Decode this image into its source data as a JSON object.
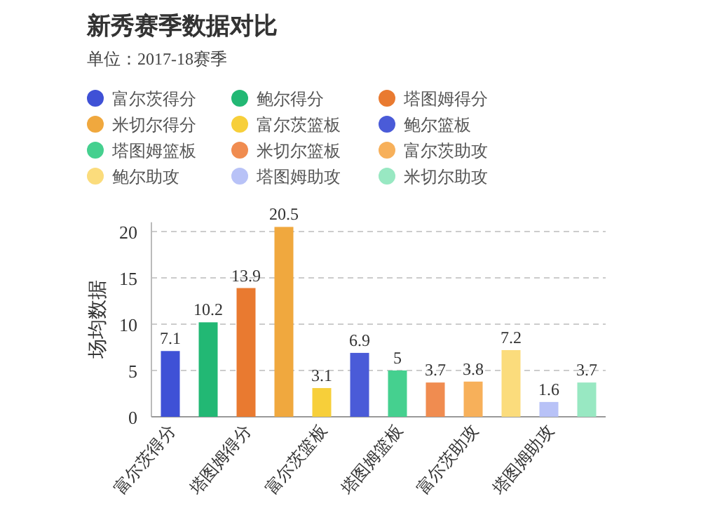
{
  "chart_data": {
    "type": "bar",
    "title": "新秀赛季数据对比",
    "subtitle": "单位：2017-18赛季",
    "ylabel": "场均数据",
    "categories": [
      "富尔茨得分",
      null,
      "塔图姆得分",
      null,
      "富尔茨篮板",
      null,
      "塔图姆篮板",
      null,
      "富尔茨助攻",
      null,
      "塔图姆助攻",
      null
    ],
    "series": [
      {
        "name": "富尔茨得分",
        "color": "#3f51d6",
        "values": [
          7.1,
          null,
          null,
          null,
          null,
          null,
          null,
          null,
          null,
          null,
          null,
          null
        ]
      },
      {
        "name": "鲍尔得分",
        "color": "#22b874",
        "values": [
          null,
          10.2,
          null,
          null,
          null,
          null,
          null,
          null,
          null,
          null,
          null,
          null
        ]
      },
      {
        "name": "塔图姆得分",
        "color": "#e97a30",
        "values": [
          null,
          null,
          13.9,
          null,
          null,
          null,
          null,
          null,
          null,
          null,
          null,
          null
        ]
      },
      {
        "name": "米切尔得分",
        "color": "#f0a83e",
        "values": [
          null,
          null,
          null,
          20.5,
          null,
          null,
          null,
          null,
          null,
          null,
          null,
          null
        ]
      },
      {
        "name": "富尔茨篮板",
        "color": "#f7cf3a",
        "values": [
          null,
          null,
          null,
          null,
          3.1,
          null,
          null,
          null,
          null,
          null,
          null,
          null
        ]
      },
      {
        "name": "鲍尔篮板",
        "color": "#4a5bd8",
        "values": [
          null,
          null,
          null,
          null,
          null,
          6.9,
          null,
          null,
          null,
          null,
          null,
          null
        ]
      },
      {
        "name": "塔图姆篮板",
        "color": "#45d08f",
        "values": [
          null,
          null,
          null,
          null,
          null,
          null,
          5,
          null,
          null,
          null,
          null,
          null
        ]
      },
      {
        "name": "米切尔篮板",
        "color": "#f08c50",
        "values": [
          null,
          null,
          null,
          null,
          null,
          null,
          null,
          3.7,
          null,
          null,
          null,
          null
        ]
      },
      {
        "name": "富尔茨助攻",
        "color": "#f7b05a",
        "values": [
          null,
          null,
          null,
          null,
          null,
          null,
          null,
          null,
          3.8,
          null,
          null,
          null
        ]
      },
      {
        "name": "鲍尔助攻",
        "color": "#fbdc7c",
        "values": [
          null,
          null,
          null,
          null,
          null,
          null,
          null,
          null,
          null,
          7.2,
          null,
          null
        ]
      },
      {
        "name": "塔图姆助攻",
        "color": "#b8c2f7",
        "values": [
          null,
          null,
          null,
          null,
          null,
          null,
          null,
          null,
          null,
          null,
          1.6,
          null
        ]
      },
      {
        "name": "米切尔助攻",
        "color": "#98e8c2",
        "values": [
          null,
          null,
          null,
          null,
          null,
          null,
          null,
          null,
          null,
          null,
          null,
          3.7
        ]
      }
    ],
    "ylim": [
      0,
      21
    ],
    "yticks": [
      0,
      5,
      10,
      15,
      20
    ],
    "grid": "y",
    "legend": "top",
    "data_labels": true
  }
}
